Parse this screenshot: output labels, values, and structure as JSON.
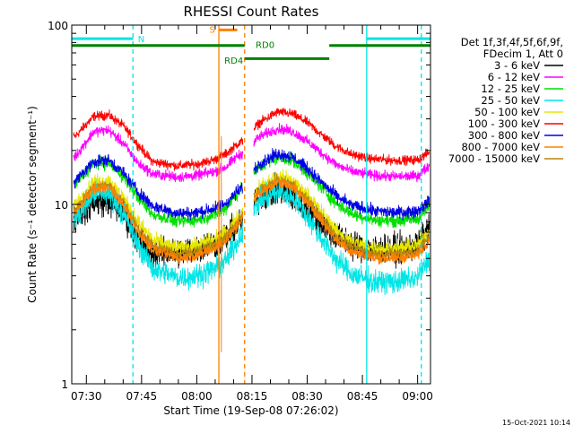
{
  "chart_data": {
    "type": "line",
    "title": "RHESSI Count Rates",
    "xlabel": "Start Time (19-Sep-08 07:26:02)",
    "ylabel": "Count Rate (s⁻¹ detector segment⁻¹)",
    "y_scale": "log",
    "ylim": [
      1,
      100
    ],
    "xlim": [
      "07:26:02",
      "09:03:30"
    ],
    "x_ticks": [
      "07:30",
      "07:45",
      "08:00",
      "08:15",
      "08:30",
      "08:45",
      "09:00"
    ],
    "y_ticks": [
      "1",
      "10",
      "100"
    ],
    "grid": false,
    "legend_placement": "right",
    "legend_header": [
      "Det 1f,3f,4f,5f,6f,9f,",
      "FDecim 1, Att 0"
    ],
    "footer_date": "15-Oct-2021 10:14",
    "gaps": [
      [
        "08:12:30",
        "08:15:30"
      ]
    ],
    "series": [
      {
        "name": "3 - 6 keV",
        "color": "#000000",
        "x": [
          "07:27",
          "07:32",
          "07:36",
          "07:40",
          "07:44",
          "07:48",
          "07:55",
          "08:00",
          "08:05",
          "08:08",
          "08:11",
          "08:12",
          "08:17",
          "08:22",
          "08:26",
          "08:30",
          "08:34",
          "08:38",
          "08:42",
          "08:48",
          "08:54",
          "09:00",
          "09:03"
        ],
        "y": [
          8.5,
          10.3,
          10.5,
          8.9,
          6.5,
          5.4,
          5.4,
          5.7,
          6.1,
          6.6,
          7.6,
          8.0,
          10.9,
          12.0,
          11.1,
          9.4,
          7.8,
          6.6,
          6.0,
          5.6,
          5.6,
          5.9,
          7.2
        ]
      },
      {
        "name": "6 - 12 keV",
        "color": "#ff00ff",
        "x": [
          "07:27",
          "07:32",
          "07:36",
          "07:40",
          "07:44",
          "07:48",
          "07:55",
          "08:00",
          "08:05",
          "08:08",
          "08:11",
          "08:12",
          "08:17",
          "08:22",
          "08:26",
          "08:30",
          "08:34",
          "08:38",
          "08:42",
          "08:48",
          "08:54",
          "09:00",
          "09:03"
        ],
        "y": [
          18.5,
          25.5,
          26.0,
          22.0,
          17.0,
          14.8,
          14.2,
          14.5,
          15.3,
          16.2,
          18.6,
          19.0,
          23.8,
          26.5,
          25.5,
          22.5,
          19.3,
          16.6,
          15.3,
          14.5,
          14.3,
          14.4,
          16.4
        ]
      },
      {
        "name": "12 - 25 keV",
        "color": "#00e000",
        "x": [
          "07:27",
          "07:32",
          "07:36",
          "07:40",
          "07:44",
          "07:48",
          "07:55",
          "08:00",
          "08:05",
          "08:08",
          "08:11",
          "08:12",
          "08:17",
          "08:22",
          "08:26",
          "08:30",
          "08:34",
          "08:38",
          "08:42",
          "08:48",
          "08:54",
          "09:00",
          "09:03"
        ],
        "y": [
          13.0,
          16.8,
          17.2,
          14.3,
          11.0,
          8.8,
          8.0,
          8.2,
          8.8,
          9.6,
          11.5,
          12.2,
          16.1,
          18.3,
          17.5,
          15.0,
          12.3,
          10.1,
          8.9,
          8.2,
          8.1,
          8.3,
          9.7
        ]
      },
      {
        "name": "25 - 50 keV",
        "color": "#00e5e5",
        "x": [
          "07:27",
          "07:32",
          "07:36",
          "07:40",
          "07:44",
          "07:48",
          "07:55",
          "08:00",
          "08:05",
          "08:08",
          "08:11",
          "08:12",
          "08:17",
          "08:22",
          "08:26",
          "08:30",
          "08:34",
          "08:38",
          "08:42",
          "08:48",
          "08:54",
          "09:00",
          "09:03"
        ],
        "y": [
          8.2,
          11.4,
          11.6,
          9.0,
          6.0,
          4.4,
          3.9,
          4.0,
          4.4,
          4.9,
          6.2,
          6.8,
          10.4,
          11.8,
          11.0,
          8.6,
          6.4,
          4.9,
          4.1,
          3.7,
          3.7,
          3.9,
          5.0
        ]
      },
      {
        "name": "50 - 100 keV",
        "color": "#e6e600",
        "x": [
          "07:27",
          "07:32",
          "07:36",
          "07:40",
          "07:44",
          "07:48",
          "07:55",
          "08:00",
          "08:05",
          "08:08",
          "08:11",
          "08:12",
          "08:17",
          "08:22",
          "08:26",
          "08:30",
          "08:34",
          "08:38",
          "08:42",
          "08:48",
          "08:54",
          "09:00",
          "09:03"
        ],
        "y": [
          10.0,
          13.3,
          13.6,
          11.0,
          8.0,
          6.3,
          5.7,
          5.9,
          6.4,
          7.0,
          8.3,
          8.8,
          12.4,
          14.3,
          13.5,
          11.3,
          9.0,
          7.1,
          6.2,
          5.7,
          5.7,
          5.9,
          7.1
        ]
      },
      {
        "name": "100 - 300 keV",
        "color": "#ff0000",
        "x": [
          "07:27",
          "07:32",
          "07:36",
          "07:40",
          "07:44",
          "07:48",
          "07:55",
          "08:00",
          "08:05",
          "08:08",
          "08:11",
          "08:12",
          "08:17",
          "08:22",
          "08:26",
          "08:30",
          "08:34",
          "08:38",
          "08:42",
          "08:48",
          "08:54",
          "09:00",
          "09:03"
        ],
        "y": [
          24.0,
          31.0,
          31.5,
          27.5,
          21.5,
          17.3,
          16.4,
          16.8,
          17.8,
          19.2,
          21.7,
          22.2,
          28.5,
          32.8,
          32.0,
          28.7,
          24.4,
          21.0,
          19.0,
          17.9,
          17.6,
          17.7,
          19.5
        ]
      },
      {
        "name": "300 - 800 keV",
        "color": "#0000e6",
        "x": [
          "07:27",
          "07:32",
          "07:36",
          "07:40",
          "07:44",
          "07:48",
          "07:55",
          "08:00",
          "08:05",
          "08:08",
          "08:11",
          "08:12",
          "08:17",
          "08:22",
          "08:26",
          "08:30",
          "08:34",
          "08:38",
          "08:42",
          "08:48",
          "08:54",
          "09:00",
          "09:03"
        ],
        "y": [
          13.5,
          17.4,
          17.7,
          15.0,
          11.8,
          9.8,
          8.9,
          9.0,
          9.5,
          10.2,
          11.8,
          12.3,
          16.9,
          19.2,
          18.4,
          15.9,
          13.2,
          11.1,
          9.9,
          9.2,
          9.0,
          9.2,
          10.4
        ]
      },
      {
        "name": "800 - 7000 keV",
        "color": "#ff8000",
        "x": [
          "07:27",
          "07:32",
          "07:36",
          "07:40",
          "07:44",
          "07:48",
          "07:55",
          "08:00",
          "08:05",
          "08:08",
          "08:11",
          "08:12",
          "08:17",
          "08:22",
          "08:26",
          "08:30",
          "08:34",
          "08:38",
          "08:42",
          "08:48",
          "08:54",
          "09:00",
          "09:03"
        ],
        "y": [
          9.0,
          12.2,
          12.5,
          10.0,
          7.0,
          5.6,
          5.0,
          5.2,
          5.7,
          6.3,
          7.6,
          8.2,
          11.6,
          13.3,
          12.6,
          10.3,
          8.1,
          6.3,
          5.5,
          5.0,
          5.0,
          5.2,
          6.3
        ]
      },
      {
        "name": "7000 - 15000 keV",
        "color": "#b8860b",
        "x": [
          "07:27",
          "07:32",
          "07:36",
          "07:40",
          "07:44",
          "07:48",
          "07:55",
          "08:00",
          "08:05",
          "08:08",
          "08:11",
          "08:12",
          "08:17",
          "08:22",
          "08:26",
          "08:30",
          "08:34",
          "08:38",
          "08:42",
          "08:48",
          "08:54",
          "09:00",
          "09:03"
        ],
        "y": [
          9.4,
          12.6,
          12.9,
          10.4,
          7.4,
          5.9,
          5.3,
          5.5,
          6.0,
          6.6,
          7.9,
          8.5,
          12.0,
          13.7,
          13.0,
          10.7,
          8.5,
          6.6,
          5.8,
          5.3,
          5.3,
          5.5,
          6.6
        ]
      }
    ],
    "annotations": {
      "vlines": [
        {
          "t": "07:42:40",
          "color": "#00e5e5",
          "style": "dashed"
        },
        {
          "t": "08:06:00",
          "color": "#ff8000",
          "style": "solid"
        },
        {
          "t": "08:13:00",
          "color": "#ff8000",
          "style": "dashed"
        },
        {
          "t": "08:46:10",
          "color": "#00e5e5",
          "style": "solid"
        },
        {
          "t": "09:01:00",
          "color": "#00e5e5",
          "style": "dashed"
        }
      ],
      "flag_bars": [
        {
          "start": "07:26:02",
          "end": "07:42:40",
          "level": 84.0,
          "color": "#00e5e5"
        },
        {
          "start": "08:46:10",
          "end": "09:03:30",
          "level": 84.0,
          "color": "#00e5e5"
        },
        {
          "start": "08:06:00",
          "end": "08:11:00",
          "level": 94.0,
          "color": "#ff8000"
        },
        {
          "start": "07:26:02",
          "end": "08:13:00",
          "level": 77.0,
          "color": "#008000"
        },
        {
          "start": "08:13:00",
          "end": "08:36:00",
          "level": 65.0,
          "color": "#008000"
        },
        {
          "start": "08:36:00",
          "end": "09:03:30",
          "level": 77.0,
          "color": "#008000"
        }
      ],
      "flag_labels": [
        {
          "text": "N",
          "t": "07:44:00",
          "level": 84.0,
          "color": "#00e5e5"
        },
        {
          "text": "S",
          "t": "08:05:00",
          "level": 95.0,
          "color": "#ff8000"
        },
        {
          "text": "RD0",
          "t": "08:16:00",
          "level": 78.0,
          "color": "#008000"
        },
        {
          "text": "RD4",
          "t": "08:07:30",
          "level": 64.0,
          "color": "#008000"
        }
      ]
    }
  }
}
